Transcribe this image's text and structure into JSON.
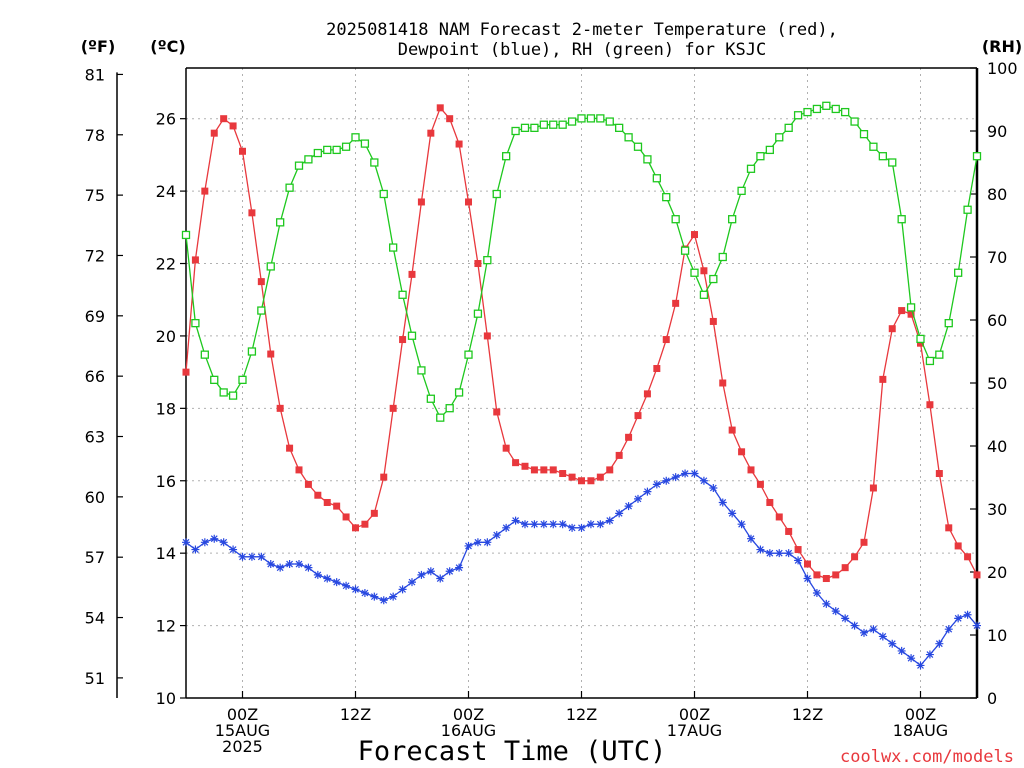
{
  "chart_data": {
    "type": "line",
    "title_lines": [
      "2025081418 NAM Forecast 2-meter Temperature (red),",
      "Dewpoint (blue), RH (green) for KSJC"
    ],
    "xlabel": "Forecast Time (UTC)",
    "credit": "coolwx.com/models",
    "units": {
      "fahrenheit": "(ºF)",
      "celsius": "(ºC)",
      "rh": "(RH)"
    },
    "x_unit": "forecast hour",
    "xlim": [
      0,
      84
    ],
    "ylim_celsius": [
      10,
      27.4
    ],
    "ylim_rh": [
      0,
      100
    ],
    "grid": true,
    "colors": {
      "temperature": "#e8383d",
      "dewpoint": "#2848e0",
      "rh": "#1ec81e"
    },
    "x_ticks": [
      {
        "x": 6,
        "lines": [
          "00Z",
          "15AUG",
          "2025"
        ]
      },
      {
        "x": 18,
        "lines": [
          "12Z"
        ]
      },
      {
        "x": 30,
        "lines": [
          "00Z",
          "16AUG"
        ]
      },
      {
        "x": 42,
        "lines": [
          "12Z"
        ]
      },
      {
        "x": 54,
        "lines": [
          "00Z",
          "17AUG"
        ]
      },
      {
        "x": 66,
        "lines": [
          "12Z"
        ]
      },
      {
        "x": 78,
        "lines": [
          "00Z",
          "18AUG"
        ]
      }
    ],
    "y_ticks_celsius": [
      "10",
      "12",
      "14",
      "16",
      "18",
      "20",
      "22",
      "24",
      "26"
    ],
    "y_ticks_fahrenheit": [
      "51",
      "54",
      "57",
      "60",
      "63",
      "66",
      "69",
      "72",
      "75",
      "78",
      "81"
    ],
    "y_ticks_rh": [
      "0",
      "10",
      "20",
      "30",
      "40",
      "50",
      "60",
      "70",
      "80",
      "90",
      "100"
    ],
    "series": [
      {
        "key": "temperature",
        "axis": "celsius",
        "marker": "filled-square",
        "x": [
          0,
          1,
          2,
          3,
          4,
          5,
          6,
          7,
          8,
          9,
          10,
          11,
          12,
          13,
          14,
          15,
          16,
          17,
          18,
          19,
          20,
          21,
          22,
          23,
          24,
          25,
          26,
          27,
          28,
          29,
          30,
          31,
          32,
          33,
          34,
          35,
          36,
          37,
          38,
          39,
          40,
          41,
          42,
          43,
          44,
          45,
          46,
          47,
          48,
          49,
          50,
          51,
          52,
          53,
          54,
          55,
          56,
          57,
          58,
          59,
          60,
          61,
          62,
          63,
          64,
          65,
          66,
          67,
          68,
          69,
          70,
          71,
          72,
          73,
          74,
          75,
          76,
          77,
          78,
          79,
          80,
          81,
          82,
          83,
          84
        ],
        "values": [
          19.0,
          22.1,
          24.0,
          25.6,
          26.0,
          25.8,
          25.1,
          23.4,
          21.5,
          19.5,
          18.0,
          16.9,
          16.3,
          15.9,
          15.6,
          15.4,
          15.3,
          15.0,
          14.7,
          14.8,
          15.1,
          16.1,
          18.0,
          19.9,
          21.7,
          23.7,
          25.6,
          26.3,
          26.0,
          25.3,
          23.7,
          22.0,
          20.0,
          17.9,
          16.9,
          16.5,
          16.4,
          16.3,
          16.3,
          16.3,
          16.2,
          16.1,
          16.0,
          16.0,
          16.1,
          16.3,
          16.7,
          17.2,
          17.8,
          18.4,
          19.1,
          19.9,
          20.9,
          22.4,
          22.8,
          21.8,
          20.4,
          18.7,
          17.4,
          16.8,
          16.3,
          15.9,
          15.4,
          15.0,
          14.6,
          14.1,
          13.7,
          13.4,
          13.3,
          13.4,
          13.6,
          13.9,
          14.3,
          15.8,
          18.8,
          20.2,
          20.7,
          20.6,
          19.8,
          18.1,
          16.2,
          14.7,
          14.2,
          13.9,
          13.4
        ]
      },
      {
        "key": "dewpoint",
        "axis": "celsius",
        "marker": "star",
        "x": [
          0,
          1,
          2,
          3,
          4,
          5,
          6,
          7,
          8,
          9,
          10,
          11,
          12,
          13,
          14,
          15,
          16,
          17,
          18,
          19,
          20,
          21,
          22,
          23,
          24,
          25,
          26,
          27,
          28,
          29,
          30,
          31,
          32,
          33,
          34,
          35,
          36,
          37,
          38,
          39,
          40,
          41,
          42,
          43,
          44,
          45,
          46,
          47,
          48,
          49,
          50,
          51,
          52,
          53,
          54,
          55,
          56,
          57,
          58,
          59,
          60,
          61,
          62,
          63,
          64,
          65,
          66,
          67,
          68,
          69,
          70,
          71,
          72,
          73,
          74,
          75,
          76,
          77,
          78,
          79,
          80,
          81,
          82,
          83,
          84
        ],
        "values": [
          14.3,
          14.1,
          14.3,
          14.4,
          14.3,
          14.1,
          13.9,
          13.9,
          13.9,
          13.7,
          13.6,
          13.7,
          13.7,
          13.6,
          13.4,
          13.3,
          13.2,
          13.1,
          13.0,
          12.9,
          12.8,
          12.7,
          12.8,
          13.0,
          13.2,
          13.4,
          13.5,
          13.3,
          13.5,
          13.6,
          14.2,
          14.3,
          14.3,
          14.5,
          14.7,
          14.9,
          14.8,
          14.8,
          14.8,
          14.8,
          14.8,
          14.7,
          14.7,
          14.8,
          14.8,
          14.9,
          15.1,
          15.3,
          15.5,
          15.7,
          15.9,
          16.0,
          16.1,
          16.2,
          16.2,
          16.0,
          15.8,
          15.4,
          15.1,
          14.8,
          14.4,
          14.1,
          14.0,
          14.0,
          14.0,
          13.8,
          13.3,
          12.9,
          12.6,
          12.4,
          12.2,
          12.0,
          11.8,
          11.9,
          11.7,
          11.5,
          11.3,
          11.1,
          10.9,
          11.2,
          11.5,
          11.9,
          12.2,
          12.3,
          12.0
        ]
      },
      {
        "key": "rh",
        "axis": "rh",
        "marker": "open-square",
        "x": [
          0,
          1,
          2,
          3,
          4,
          5,
          6,
          7,
          8,
          9,
          10,
          11,
          12,
          13,
          14,
          15,
          16,
          17,
          18,
          19,
          20,
          21,
          22,
          23,
          24,
          25,
          26,
          27,
          28,
          29,
          30,
          31,
          32,
          33,
          34,
          35,
          36,
          37,
          38,
          39,
          40,
          41,
          42,
          43,
          44,
          45,
          46,
          47,
          48,
          49,
          50,
          51,
          52,
          53,
          54,
          55,
          56,
          57,
          58,
          59,
          60,
          61,
          62,
          63,
          64,
          65,
          66,
          67,
          68,
          69,
          70,
          71,
          72,
          73,
          74,
          75,
          76,
          77,
          78,
          79,
          80,
          81,
          82,
          83,
          84
        ],
        "values": [
          73.5,
          59.5,
          54.5,
          50.5,
          48.5,
          48.0,
          50.5,
          55.0,
          61.5,
          68.5,
          75.5,
          81.0,
          84.5,
          85.5,
          86.5,
          87.0,
          87.0,
          87.5,
          89.0,
          88.0,
          85.0,
          80.0,
          71.5,
          64.0,
          57.5,
          52.0,
          47.5,
          44.5,
          46.0,
          48.5,
          54.5,
          61.0,
          69.5,
          80.0,
          86.0,
          90.0,
          90.5,
          90.5,
          91.0,
          91.0,
          91.0,
          91.5,
          92.0,
          92.0,
          92.0,
          91.5,
          90.5,
          89.0,
          87.5,
          85.5,
          82.5,
          79.5,
          76.0,
          71.0,
          67.5,
          64.0,
          66.5,
          70.0,
          76.0,
          80.5,
          84.0,
          86.0,
          87.0,
          89.0,
          90.5,
          92.5,
          93.0,
          93.5,
          94.0,
          93.5,
          93.0,
          91.5,
          89.5,
          87.5,
          86.0,
          85.0,
          76.0,
          62.0,
          57.0,
          53.5,
          54.5,
          59.5,
          67.5,
          77.5,
          86.0
        ]
      }
    ]
  }
}
